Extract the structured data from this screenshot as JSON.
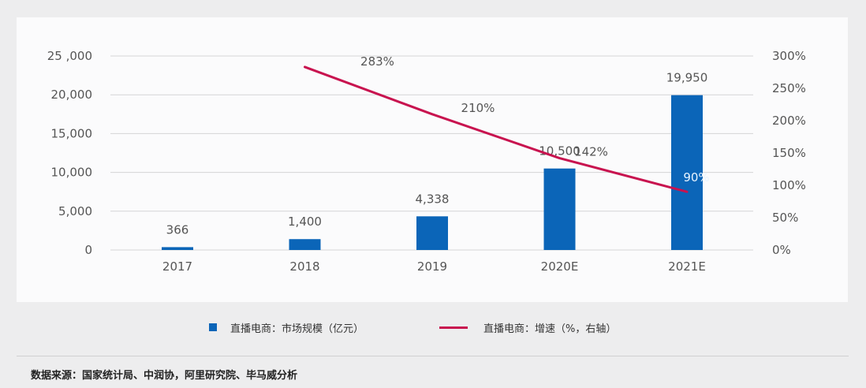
{
  "chart_data": {
    "type": "bar+line",
    "categories": [
      "2017",
      "2018",
      "2019",
      "2020E",
      "2021E"
    ],
    "series": [
      {
        "name": "直播电商：市场规模（亿元）",
        "type": "bar",
        "axis": "left",
        "color": "#0b65b8",
        "values": [
          366,
          1400,
          4338,
          10500,
          19950
        ],
        "labels": [
          "366",
          "1,400",
          "4,338",
          "10,500",
          "19,950"
        ]
      },
      {
        "name": "直播电商：增速（%，右轴）",
        "type": "line",
        "axis": "right",
        "color": "#c8134f",
        "values": [
          null,
          283,
          210,
          142,
          90
        ],
        "labels": [
          "",
          "283%",
          "210%",
          "142%",
          "90%"
        ]
      }
    ],
    "left_axis": {
      "ticks": [
        "0",
        "5,000",
        "10,000",
        "15,000",
        "20,000",
        "25 ,000"
      ],
      "range": [
        0,
        25000
      ]
    },
    "right_axis": {
      "ticks": [
        "0%",
        "50%",
        "100%",
        "150%",
        "200%",
        "250%",
        "300%"
      ],
      "range": [
        0,
        300
      ]
    },
    "grid": true,
    "legend_position": "bottom"
  },
  "legend": {
    "bar_label": "直播电商：市场规模（亿元）",
    "line_label": "直播电商：增速（%，右轴）"
  },
  "footer": {
    "source": "数据来源：国家统计局、中润协，阿里研究院、毕马威分析"
  }
}
